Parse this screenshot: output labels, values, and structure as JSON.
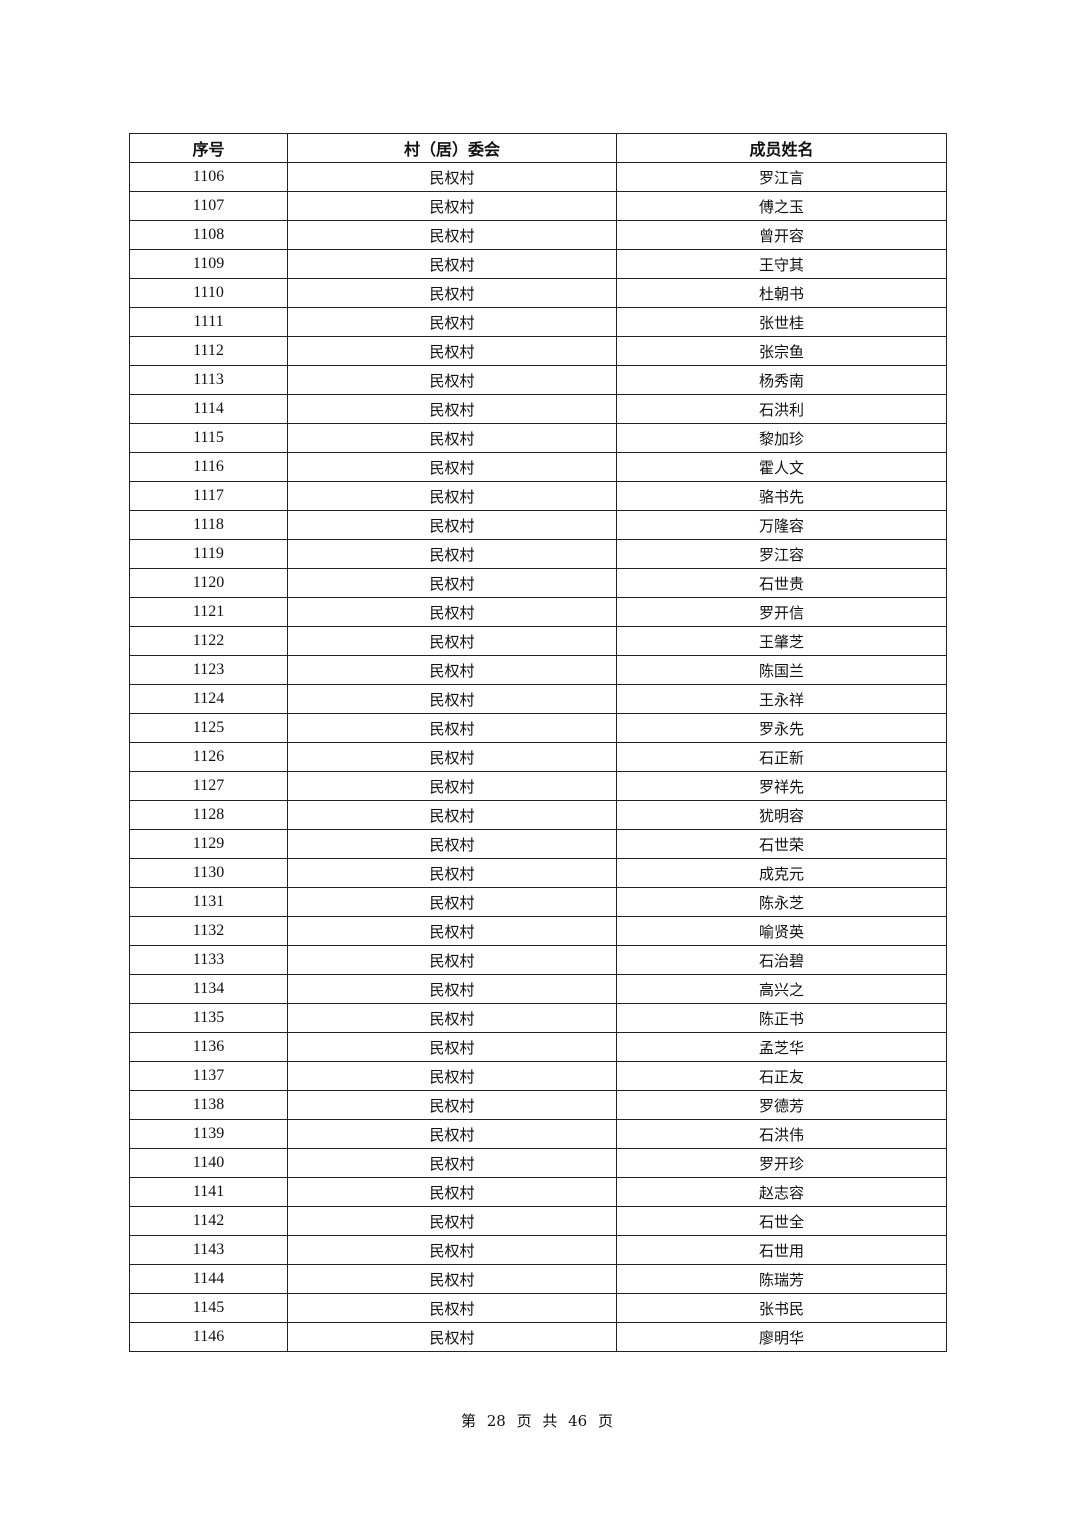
{
  "table": {
    "headers": [
      "序号",
      "村（居）委会",
      "成员姓名"
    ],
    "rows": [
      [
        "1106",
        "民权村",
        "罗江言"
      ],
      [
        "1107",
        "民权村",
        "傅之玉"
      ],
      [
        "1108",
        "民权村",
        "曾开容"
      ],
      [
        "1109",
        "民权村",
        "王守其"
      ],
      [
        "1110",
        "民权村",
        "杜朝书"
      ],
      [
        "1111",
        "民权村",
        "张世桂"
      ],
      [
        "1112",
        "民权村",
        "张宗鱼"
      ],
      [
        "1113",
        "民权村",
        "杨秀南"
      ],
      [
        "1114",
        "民权村",
        "石洪利"
      ],
      [
        "1115",
        "民权村",
        "黎加珍"
      ],
      [
        "1116",
        "民权村",
        "霍人文"
      ],
      [
        "1117",
        "民权村",
        "骆书先"
      ],
      [
        "1118",
        "民权村",
        "万隆容"
      ],
      [
        "1119",
        "民权村",
        "罗江容"
      ],
      [
        "1120",
        "民权村",
        "石世贵"
      ],
      [
        "1121",
        "民权村",
        "罗开信"
      ],
      [
        "1122",
        "民权村",
        "王肇芝"
      ],
      [
        "1123",
        "民权村",
        "陈国兰"
      ],
      [
        "1124",
        "民权村",
        "王永祥"
      ],
      [
        "1125",
        "民权村",
        "罗永先"
      ],
      [
        "1126",
        "民权村",
        "石正新"
      ],
      [
        "1127",
        "民权村",
        "罗祥先"
      ],
      [
        "1128",
        "民权村",
        "犹明容"
      ],
      [
        "1129",
        "民权村",
        "石世荣"
      ],
      [
        "1130",
        "民权村",
        "成克元"
      ],
      [
        "1131",
        "民权村",
        "陈永芝"
      ],
      [
        "1132",
        "民权村",
        "喻贤英"
      ],
      [
        "1133",
        "民权村",
        "石治碧"
      ],
      [
        "1134",
        "民权村",
        "高兴之"
      ],
      [
        "1135",
        "民权村",
        "陈正书"
      ],
      [
        "1136",
        "民权村",
        "孟芝华"
      ],
      [
        "1137",
        "民权村",
        "石正友"
      ],
      [
        "1138",
        "民权村",
        "罗德芳"
      ],
      [
        "1139",
        "民权村",
        "石洪伟"
      ],
      [
        "1140",
        "民权村",
        "罗开珍"
      ],
      [
        "1141",
        "民权村",
        "赵志容"
      ],
      [
        "1142",
        "民权村",
        "石世全"
      ],
      [
        "1143",
        "民权村",
        "石世用"
      ],
      [
        "1144",
        "民权村",
        "陈瑞芳"
      ],
      [
        "1145",
        "民权村",
        "张书民"
      ],
      [
        "1146",
        "民权村",
        "廖明华"
      ]
    ]
  },
  "footer": "第 28 页 共 46 页"
}
